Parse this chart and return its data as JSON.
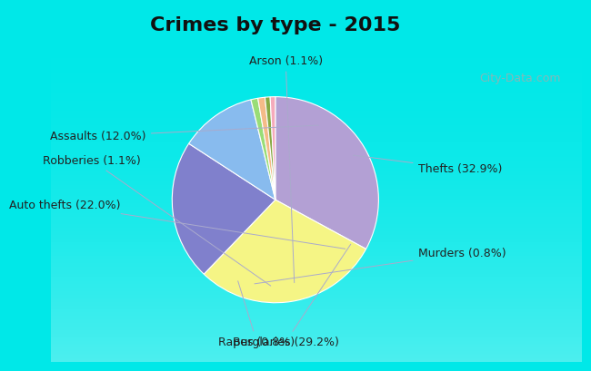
{
  "title": "Crimes by type - 2015",
  "labels": [
    "Thefts (32.9%)",
    "Burglaries (29.2%)",
    "Auto thefts (22.0%)",
    "Assaults (12.0%)",
    "Arson (1.1%)",
    "Robberies (1.1%)",
    "Murders (0.8%)",
    "Rapes (0.8%)"
  ],
  "percentages": [
    32.9,
    29.2,
    22.0,
    12.0,
    1.1,
    1.1,
    0.8,
    0.8
  ],
  "colors": [
    "#b3a0d4",
    "#f5f585",
    "#8080cc",
    "#88bbee",
    "#99dd77",
    "#f5bb88",
    "#88aa44",
    "#f5aabb"
  ],
  "background_color": "#00e8e8",
  "inner_bg_color_top": "#e8f5f0",
  "inner_bg_color_bottom": "#d0eedc",
  "title_fontsize": 16,
  "label_fontsize": 9,
  "watermark": "City-Data.com",
  "start_angle": 90,
  "label_positions": [
    [
      1.38,
      0.3,
      "left"
    ],
    [
      0.1,
      -1.38,
      "center"
    ],
    [
      -1.5,
      -0.05,
      "right"
    ],
    [
      -1.25,
      0.62,
      "right"
    ],
    [
      0.1,
      1.35,
      "center"
    ],
    [
      -1.3,
      0.38,
      "right"
    ],
    [
      1.38,
      -0.52,
      "left"
    ],
    [
      -0.55,
      -1.38,
      "left"
    ]
  ]
}
